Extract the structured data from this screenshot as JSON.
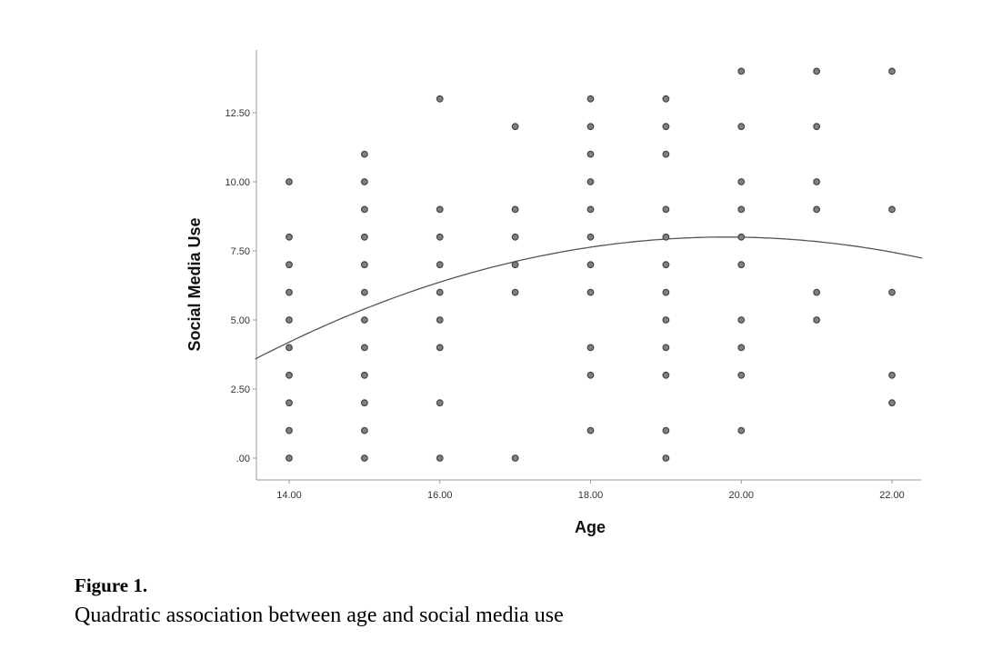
{
  "chart_data": {
    "type": "scatter",
    "title": "",
    "xlabel": "Age",
    "ylabel": "Social Media Use",
    "xlim": [
      13.55,
      22.4
    ],
    "ylim": [
      -0.8,
      15.1
    ],
    "x_ticks": [
      "14.00",
      "16.00",
      "18.00",
      "20.00",
      "22.00"
    ],
    "x_tick_values": [
      14,
      16,
      18,
      20,
      22
    ],
    "y_ticks": [
      ".00",
      "2.50",
      "5.00",
      "7.50",
      "10.00",
      "12.50"
    ],
    "y_tick_values": [
      0,
      2.5,
      5,
      7.5,
      10,
      12.5
    ],
    "grid": false,
    "marker_color": "#808080",
    "marker_edge_color": "#444444",
    "fit_line_color": "#555555",
    "points": [
      {
        "x": 14,
        "y": [
          10,
          8,
          7,
          6,
          5,
          4,
          3,
          2,
          1,
          0
        ]
      },
      {
        "x": 15,
        "y": [
          11,
          10,
          9,
          8,
          7,
          6,
          5,
          4,
          3,
          2,
          1,
          0
        ]
      },
      {
        "x": 16,
        "y": [
          13,
          9,
          8,
          7,
          6,
          5,
          4,
          2,
          0
        ]
      },
      {
        "x": 17,
        "y": [
          12,
          9,
          8,
          7,
          6,
          0
        ]
      },
      {
        "x": 18,
        "y": [
          13,
          12,
          11,
          10,
          9,
          8,
          7,
          6,
          4,
          3,
          1
        ]
      },
      {
        "x": 19,
        "y": [
          13,
          12,
          11,
          9,
          8,
          7,
          6,
          5,
          4,
          3,
          1,
          0
        ]
      },
      {
        "x": 20,
        "y": [
          14,
          12,
          10,
          9,
          8,
          7,
          5,
          4,
          3,
          1
        ]
      },
      {
        "x": 21,
        "y": [
          14,
          12,
          10,
          9,
          6,
          5
        ]
      },
      {
        "x": 22,
        "y": [
          14,
          9,
          6,
          3,
          2
        ]
      }
    ],
    "fit": {
      "type": "quadratic",
      "vertex_x": 19.8,
      "vertex_y": 8.0,
      "a": -0.113
    }
  },
  "caption": {
    "title": "Figure 1.",
    "text": "Quadratic association between age and social media use"
  }
}
